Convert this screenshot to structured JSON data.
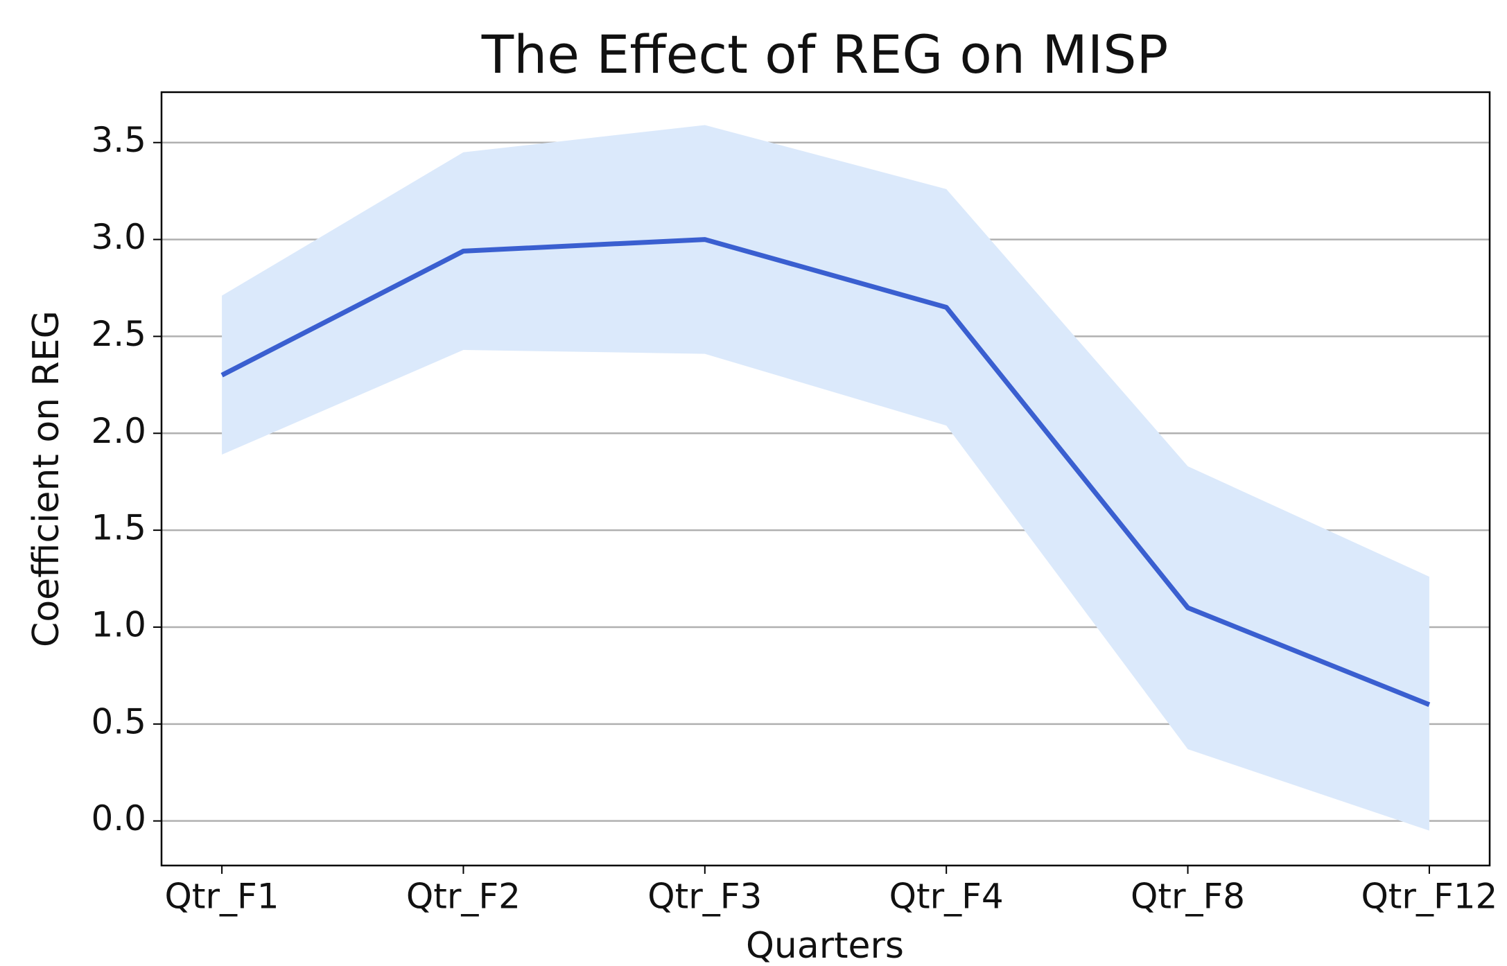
{
  "chart_data": {
    "type": "line",
    "title": "The Effect of REG on MISP",
    "x_label": "Quarters",
    "y_label": "Coefficient on REG",
    "categories": [
      "Qtr_F1",
      "Qtr_F2",
      "Qtr_F3",
      "Qtr_F4",
      "Qtr_F8",
      "Qtr_F12"
    ],
    "values": [
      2.3,
      2.94,
      3.0,
      2.65,
      1.1,
      0.6
    ],
    "color": "#3a5fd0",
    "band": {
      "upper": [
        2.71,
        3.45,
        3.59,
        3.26,
        1.83,
        1.26
      ],
      "lower": [
        1.89,
        2.43,
        2.41,
        2.04,
        0.37,
        -0.05
      ],
      "color": "#dbe9fb"
    },
    "ylim": [
      -0.23,
      3.76
    ],
    "yticks": [
      {
        "value": 0,
        "label": "0.0"
      },
      0.5,
      {
        "value": 1,
        "label": "1.0"
      },
      1.5,
      {
        "value": 2,
        "label": "2.0"
      },
      2.5,
      {
        "value": 3,
        "label": "3.0"
      },
      3.5
    ],
    "grid": true
  }
}
